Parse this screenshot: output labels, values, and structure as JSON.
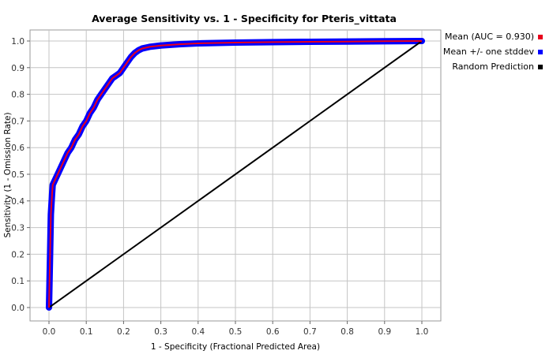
{
  "chart_data": {
    "type": "line",
    "title": "Average Sensitivity vs. 1 - Specificity for Pteris_vittata",
    "xlabel": "1 - Specificity (Fractional Predicted Area)",
    "ylabel": "Sensitivity (1 - Omission Rate)",
    "xlim": [
      0,
      1
    ],
    "ylim": [
      0,
      1
    ],
    "x_ticks": [
      "0.0",
      "0.1",
      "0.2",
      "0.3",
      "0.4",
      "0.5",
      "0.6",
      "0.7",
      "0.8",
      "0.9",
      "1.0"
    ],
    "y_ticks": [
      "0.0",
      "0.1",
      "0.2",
      "0.3",
      "0.4",
      "0.5",
      "0.6",
      "0.7",
      "0.8",
      "0.9",
      "1.0"
    ],
    "grid": true,
    "legend_position": "right",
    "series": [
      {
        "name": "Mean (AUC = 0.930)",
        "color": "#e8001c",
        "x": [
          0,
          0.003,
          0.005,
          0.008,
          0.01,
          0.02,
          0.03,
          0.04,
          0.05,
          0.06,
          0.07,
          0.08,
          0.09,
          0.1,
          0.11,
          0.12,
          0.13,
          0.14,
          0.15,
          0.16,
          0.17,
          0.18,
          0.19,
          0.2,
          0.21,
          0.22,
          0.23,
          0.24,
          0.25,
          0.27,
          0.3,
          0.35,
          0.4,
          0.5,
          0.6,
          0.7,
          0.8,
          0.9,
          1.0
        ],
        "y": [
          0,
          0.2,
          0.35,
          0.42,
          0.46,
          0.49,
          0.52,
          0.55,
          0.58,
          0.6,
          0.63,
          0.65,
          0.68,
          0.7,
          0.73,
          0.75,
          0.78,
          0.8,
          0.82,
          0.84,
          0.86,
          0.87,
          0.88,
          0.9,
          0.92,
          0.94,
          0.955,
          0.965,
          0.972,
          0.978,
          0.983,
          0.988,
          0.991,
          0.994,
          0.996,
          0.997,
          0.998,
          0.999,
          1.0
        ]
      },
      {
        "name": "Mean +/- one stddev",
        "color": "#0000ff",
        "band_width": 0.012
      },
      {
        "name": "Random Prediction",
        "color": "#000000",
        "x": [
          0,
          1
        ],
        "y": [
          0,
          1
        ]
      }
    ]
  }
}
